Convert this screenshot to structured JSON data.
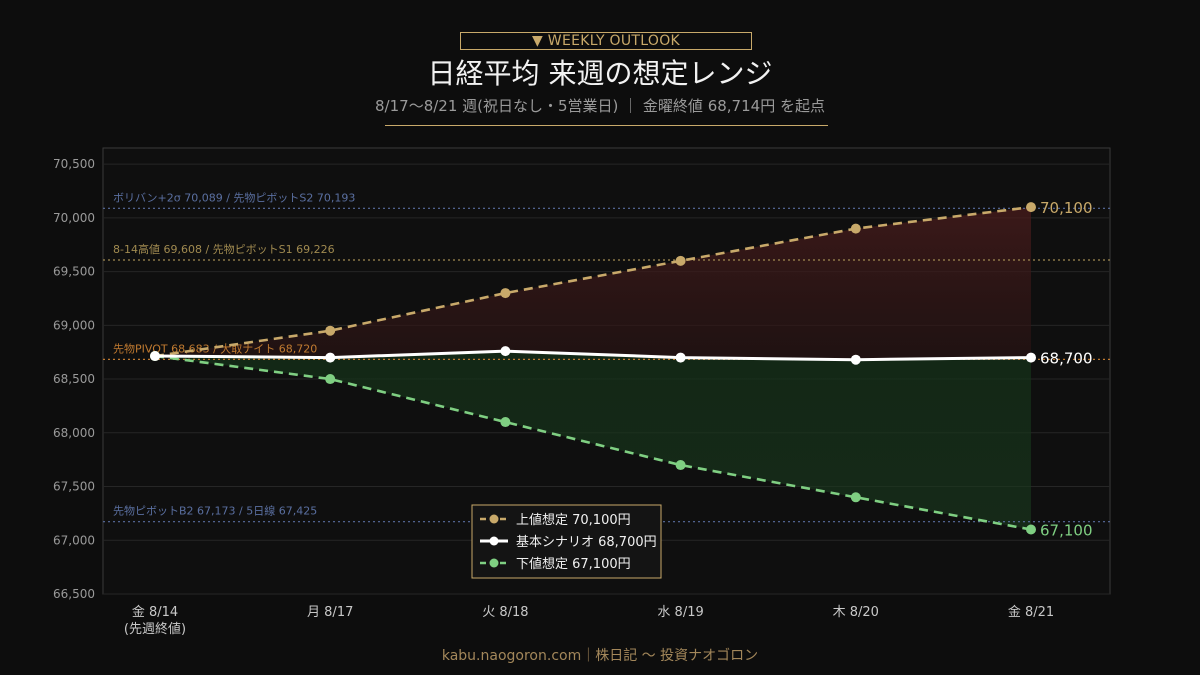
{
  "header": {
    "badge": "▼ WEEKLY OUTLOOK",
    "title": "日経平均 来週の想定レンジ",
    "subtitle": "8/17〜8/21 週(祝日なし・5営業日) ｜ 金曜終値 68,714円 を起点"
  },
  "footer": {
    "text": "kabu.naogoron.com｜株日記 〜 投資ナオゴロン"
  },
  "colors": {
    "upper": "#c8a96a",
    "base": "#ffffff",
    "lower": "#7fcf82",
    "ref_blue": "#5a6fa0",
    "ref_gold": "#a08a50",
    "ref_orange": "#c07a30",
    "upper_fill": "#3a1a1a",
    "lower_fill": "#16301a"
  },
  "chart_data": {
    "type": "line",
    "categories": [
      [
        "金 8/14",
        "(先週終値)"
      ],
      [
        "月 8/17"
      ],
      [
        "火 8/18"
      ],
      [
        "水 8/19"
      ],
      [
        "木 8/20"
      ],
      [
        "金 8/21"
      ]
    ],
    "ylim": [
      66500,
      70650
    ],
    "yticks": [
      66500,
      67000,
      67500,
      68000,
      68500,
      69000,
      69500,
      70000,
      70500
    ],
    "ytick_labels": [
      "66,500",
      "67,000",
      "67,500",
      "68,000",
      "68,500",
      "69,000",
      "69,500",
      "70,000",
      "70,500"
    ],
    "grid": true,
    "legend_position": "bottom-center",
    "series": [
      {
        "name": "上値想定 70,100円",
        "key": "upper",
        "style": "dashed",
        "values": [
          68714,
          68950,
          69300,
          69600,
          69900,
          70100
        ],
        "end_label": "70,100"
      },
      {
        "name": "基本シナリオ 68,700円",
        "key": "base",
        "style": "solid",
        "values": [
          68714,
          68700,
          68760,
          68700,
          68680,
          68700
        ],
        "end_label": "68,700"
      },
      {
        "name": "下値想定 67,100円",
        "key": "lower",
        "style": "dashed",
        "values": [
          68714,
          68500,
          68100,
          67700,
          67400,
          67100
        ],
        "end_label": "67,100"
      }
    ],
    "reference_lines": [
      {
        "y": 70089,
        "label": "ボリバン+2σ 70,089 / 先物ピボットS2 70,193",
        "color_key": "ref_blue"
      },
      {
        "y": 69608,
        "label": "8-14高値 69,608 / 先物ピボットS1 69,226",
        "color_key": "ref_gold"
      },
      {
        "y": 68683,
        "label": "先物PIVOT 68,683 / 大取ナイト 68,720",
        "color_key": "ref_orange"
      },
      {
        "y": 67173,
        "label": "先物ピボットB2 67,173 / 5日線 67,425",
        "color_key": "ref_blue"
      }
    ]
  }
}
